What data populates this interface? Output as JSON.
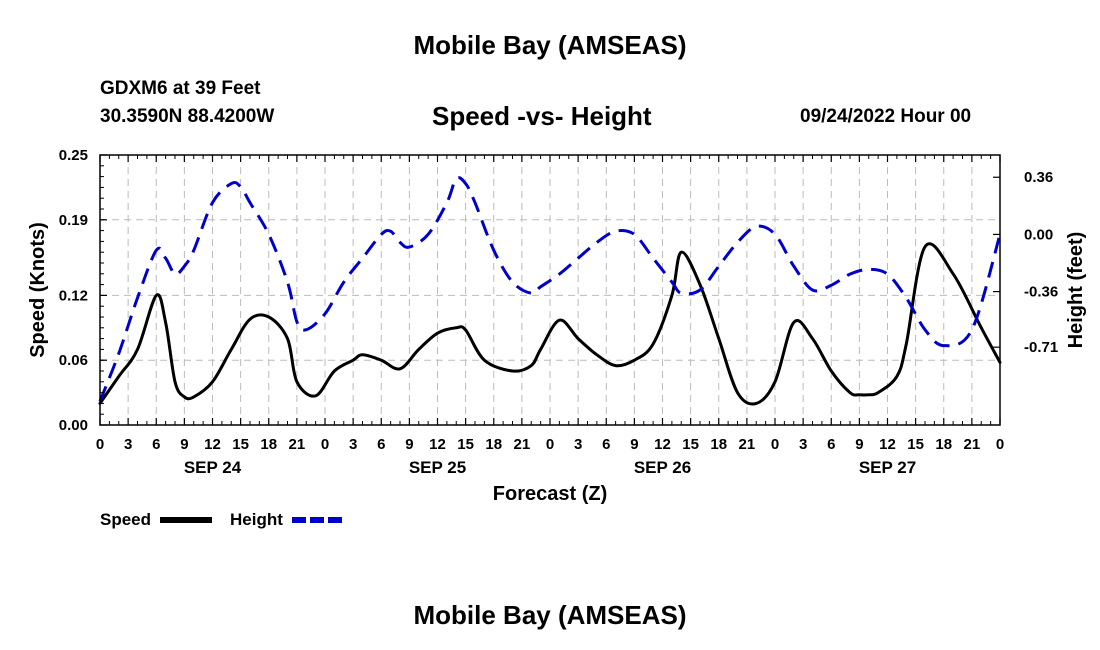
{
  "header": {
    "title": "Mobile Bay (AMSEAS)",
    "station": "GDXM6 at 39 Feet",
    "coords": "30.3590N  88.4200W",
    "chart_title": "Speed -vs- Height",
    "datetime": "09/24/2022 Hour 00"
  },
  "footer": {
    "title": "Mobile Bay (AMSEAS)"
  },
  "chart_data": {
    "type": "line",
    "title": "Speed -vs- Height",
    "xlabel": "Forecast (Z)",
    "ylabel": "Speed (Knots)",
    "y2label": "Height (feet)",
    "x_range": [
      0,
      96
    ],
    "ylim": [
      0,
      0.25
    ],
    "y2lim": [
      -1.2,
      0.5
    ],
    "grid": true,
    "x_ticks": [
      0,
      3,
      6,
      9,
      12,
      15,
      18,
      21,
      24,
      27,
      30,
      33,
      36,
      39,
      42,
      45,
      48,
      51,
      54,
      57,
      60,
      63,
      66,
      69,
      72,
      75,
      78,
      81,
      84,
      87,
      90,
      93,
      96
    ],
    "x_tick_labels": [
      "0",
      "3",
      "6",
      "9",
      "12",
      "15",
      "18",
      "21",
      "0",
      "3",
      "6",
      "9",
      "12",
      "15",
      "18",
      "21",
      "0",
      "3",
      "6",
      "9",
      "12",
      "15",
      "18",
      "21",
      "0",
      "3",
      "6",
      "9",
      "12",
      "15",
      "18",
      "21",
      "0"
    ],
    "day_labels": [
      {
        "x": 12,
        "label": "SEP 24"
      },
      {
        "x": 36,
        "label": "SEP 25"
      },
      {
        "x": 60,
        "label": "SEP 26"
      },
      {
        "x": 84,
        "label": "SEP 27"
      }
    ],
    "y_ticks": [
      0,
      0.06,
      0.12,
      0.19,
      0.25
    ],
    "y_tick_labels": [
      "0.00",
      "0.06",
      "0.12",
      "0.19",
      "0.25"
    ],
    "y2_ticks": [
      0.36,
      0.0,
      -0.36,
      -0.71
    ],
    "y2_tick_labels": [
      "0.36",
      "0.00",
      "-0.36",
      "-0.71"
    ],
    "legend": [
      {
        "name": "Speed",
        "color": "#000000",
        "dash": "solid"
      },
      {
        "name": "Height",
        "color": "#0000cc",
        "dash": "dashed"
      }
    ],
    "legend_position": "bottom-left",
    "series": [
      {
        "name": "Speed",
        "axis": "left",
        "color": "#000000",
        "x": [
          0,
          2,
          4,
          6,
          7,
          8,
          9,
          10,
          12,
          14,
          16,
          18,
          20,
          21,
          23,
          25,
          27,
          28,
          30,
          32,
          34,
          36,
          38,
          39,
          41,
          44,
          46,
          47,
          49,
          51,
          53,
          55,
          57,
          59,
          61,
          62,
          64,
          66,
          68,
          70,
          72,
          74,
          76,
          78,
          80,
          81,
          82,
          83,
          85,
          86,
          88,
          91,
          94,
          96
        ],
        "values": [
          0.02,
          0.045,
          0.07,
          0.12,
          0.095,
          0.04,
          0.026,
          0.026,
          0.04,
          0.07,
          0.098,
          0.1,
          0.08,
          0.04,
          0.027,
          0.05,
          0.06,
          0.065,
          0.06,
          0.052,
          0.07,
          0.085,
          0.09,
          0.088,
          0.06,
          0.05,
          0.055,
          0.07,
          0.097,
          0.08,
          0.065,
          0.055,
          0.06,
          0.075,
          0.12,
          0.16,
          0.13,
          0.08,
          0.03,
          0.02,
          0.04,
          0.095,
          0.08,
          0.05,
          0.03,
          0.028,
          0.028,
          0.03,
          0.045,
          0.075,
          0.165,
          0.14,
          0.09,
          0.058
        ]
      },
      {
        "name": "Height",
        "axis": "right",
        "color": "#0000cc",
        "x": [
          0,
          2,
          4,
          6,
          7,
          8,
          9,
          10,
          12,
          14,
          15,
          16,
          18,
          20,
          21,
          22,
          24,
          26,
          28,
          30,
          31,
          32,
          33,
          35,
          37,
          38,
          39,
          40,
          42,
          44,
          46,
          47,
          49,
          51,
          53,
          55,
          57,
          59,
          61,
          62,
          64,
          66,
          68,
          70,
          72,
          74,
          76,
          78,
          80,
          82,
          84,
          86,
          88,
          90,
          93,
          96
        ],
        "values": [
          -1.05,
          -0.75,
          -0.4,
          -0.1,
          -0.15,
          -0.25,
          -0.2,
          -0.1,
          0.2,
          0.32,
          0.3,
          0.2,
          0.0,
          -0.3,
          -0.55,
          -0.6,
          -0.5,
          -0.3,
          -0.15,
          0.0,
          0.02,
          -0.05,
          -0.08,
          0.0,
          0.2,
          0.35,
          0.32,
          0.2,
          -0.1,
          -0.3,
          -0.37,
          -0.33,
          -0.25,
          -0.15,
          -0.05,
          0.02,
          0.0,
          -0.15,
          -0.3,
          -0.37,
          -0.35,
          -0.2,
          -0.05,
          0.05,
          0.0,
          -0.2,
          -0.35,
          -0.32,
          -0.25,
          -0.22,
          -0.25,
          -0.4,
          -0.6,
          -0.7,
          -0.6,
          0.0
        ]
      }
    ]
  }
}
